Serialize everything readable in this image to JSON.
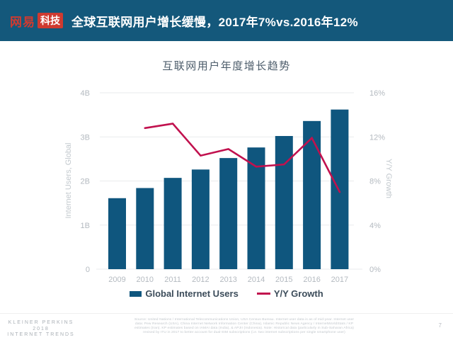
{
  "header": {
    "logo_text_1": "网易",
    "logo_text_2": "科技",
    "title": "全球互联网用户增长缓慢，2017年7%vs.2016年12%"
  },
  "chart_data": {
    "type": "bar",
    "title": "互联网用户年度增长趋势",
    "categories": [
      "2009",
      "2010",
      "2011",
      "2012",
      "2013",
      "2014",
      "2015",
      "2016",
      "2017"
    ],
    "series": [
      {
        "name": "Global Internet Users",
        "type": "bar",
        "axis": "left",
        "unit": "billions",
        "color": "#0f567e",
        "values": [
          1.61,
          1.84,
          2.07,
          2.26,
          2.52,
          2.76,
          3.02,
          3.36,
          3.62
        ]
      },
      {
        "name": "Y/Y Growth",
        "type": "line",
        "axis": "right",
        "unit": "%",
        "color": "#c1114e",
        "values": [
          null,
          12.8,
          13.2,
          10.3,
          10.9,
          9.3,
          9.5,
          11.9,
          7.0
        ]
      }
    ],
    "left_axis": {
      "label": "Internet Users, Global",
      "min": 0,
      "max": 4,
      "ticks": [
        "0",
        "1B",
        "2B",
        "3B",
        "4B"
      ]
    },
    "right_axis": {
      "label": "Y/Y Growth",
      "min": 0,
      "max": 16,
      "ticks": [
        "0%",
        "4%",
        "8%",
        "12%",
        "16%"
      ]
    },
    "grid": true,
    "legend_position": "bottom"
  },
  "legend": {
    "items": [
      {
        "label": "Global Internet Users",
        "color": "#0f567e",
        "swatch": "rect"
      },
      {
        "label": "Y/Y Growth",
        "color": "#c1114e",
        "swatch": "line"
      }
    ]
  },
  "footer": {
    "brand_line1": "KLEINER PERKINS",
    "brand_line2": "2018",
    "brand_line3": "INTERNET TRENDS",
    "source_lines": [
      "Source: United Nations / International Telecommunications Union, USA Census Bureau. Internet user data is as of mid-year. Internet user",
      "data: Pew Research (USA), China Internet Network Information Center (China), Islamic Republic News Agency / InternetWorldStats / KP",
      "estimates (Iran). KP estimates based on IAMAI data (India), & APJII (Indonesia). Note: Historical data (particularly in Sub-Saharan Africa)",
      "revised by ITU in 2017 to better account for dual-SIM subscriptions (i.e. two internet subscriptions per single smartphone user)"
    ],
    "page_number": "7"
  },
  "colors": {
    "banner_bg": "#14587b",
    "logo_red": "#cf3a30",
    "bar": "#0f567e",
    "line": "#c1114e",
    "gridline": "#e9ebed",
    "tick_label": "#b4bac0",
    "axis_title": "#c3c9ce",
    "chart_title": "#4d5d6b",
    "legend_text": "#3c4c5a"
  }
}
